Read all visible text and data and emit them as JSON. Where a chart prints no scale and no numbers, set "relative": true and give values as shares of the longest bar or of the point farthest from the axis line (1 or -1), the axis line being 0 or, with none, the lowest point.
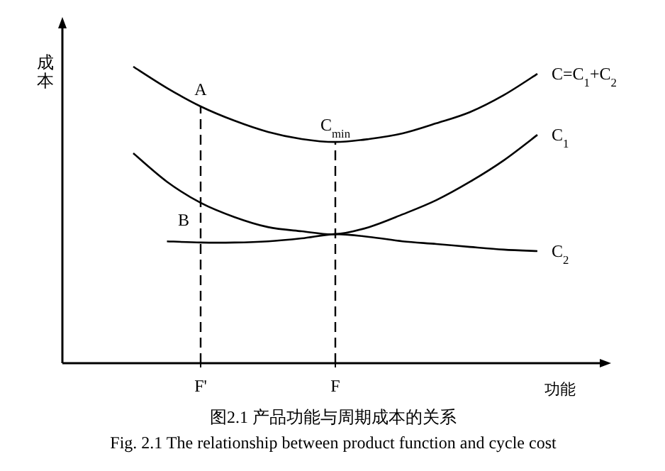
{
  "chart_data": {
    "type": "line",
    "relative": true,
    "title": "图2.1  产品功能与周期成本的关系",
    "subtitle": "Fig. 2.1 The relationship between product function and cycle cost",
    "xlabel": "功能",
    "ylabel": "成本",
    "categories": [
      null,
      null,
      "F'",
      null,
      null,
      null,
      "F",
      null,
      null,
      null,
      null,
      null,
      null
    ],
    "tick_labels": "x",
    "grid": false,
    "legend": false,
    "marker": "none",
    "line_style": "solid",
    "series": [
      {
        "name": "C=C$_{1}$+C$_{2}$",
        "color": "#000000",
        "values": [
          1.0,
          0.928,
          0.866,
          0.818,
          0.78,
          0.756,
          0.746,
          0.756,
          0.775,
          0.809,
          0.847,
          0.904,
          0.976
        ]
      },
      {
        "name": "C$_{1}$",
        "color": "#000000",
        "values": [
          0.708,
          0.612,
          0.541,
          0.493,
          0.459,
          0.445,
          0.435,
          0.459,
          0.502,
          0.55,
          0.612,
          0.684,
          0.77
        ]
      },
      {
        "name": "C$_{2}$",
        "color": "#000000",
        "values": [
          null,
          0.411,
          0.407,
          0.407,
          0.411,
          0.421,
          0.435,
          0.426,
          0.411,
          0.402,
          0.392,
          0.383,
          0.378
        ]
      }
    ],
    "ref_lines": [
      {
        "axis": "x",
        "value": "F'",
        "label": null,
        "line_style": "dashed",
        "color": "#000000"
      },
      {
        "axis": "x",
        "value": "F",
        "label": null,
        "line_style": "dashed",
        "color": "#000000"
      }
    ],
    "annotations": [
      {
        "text": "A",
        "x": "F'",
        "y": 0.866
      },
      {
        "text": "B",
        "x": "F'",
        "y": 0.541
      },
      {
        "text": "C$_{min}$",
        "x": "F",
        "y": 0.746
      }
    ]
  }
}
